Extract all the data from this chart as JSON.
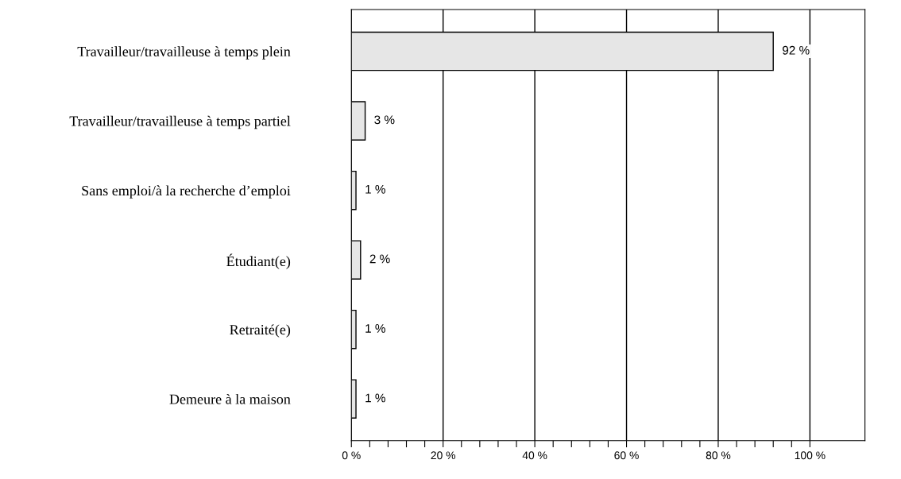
{
  "chart_data": {
    "type": "bar",
    "orientation": "horizontal",
    "categories": [
      "Travailleur/travailleuse à temps plein",
      "Travailleur/travailleuse à temps partiel",
      "Sans emploi/à la recherche d’emploi",
      "Étudiant(e)",
      "Retraité(e)",
      "Demeure à la maison"
    ],
    "values": [
      92,
      3,
      1,
      2,
      1,
      1
    ],
    "value_labels": [
      "92 %",
      "3 %",
      "1 %",
      "2 %",
      "1 %",
      "1 %"
    ],
    "color": "#e6e6e6",
    "xlim": [
      0,
      112
    ],
    "xticks": [
      {
        "value": 0,
        "label": "0 %"
      },
      {
        "value": 4,
        "label": null
      },
      {
        "value": 8,
        "label": null
      },
      {
        "value": 12,
        "label": null
      },
      {
        "value": 16,
        "label": null
      },
      {
        "value": 20,
        "label": "20 %"
      },
      {
        "value": 24,
        "label": null
      },
      {
        "value": 28,
        "label": null
      },
      {
        "value": 32,
        "label": null
      },
      {
        "value": 36,
        "label": null
      },
      {
        "value": 40,
        "label": "40 %"
      },
      {
        "value": 44,
        "label": null
      },
      {
        "value": 48,
        "label": null
      },
      {
        "value": 52,
        "label": null
      },
      {
        "value": 56,
        "label": null
      },
      {
        "value": 60,
        "label": "60 %"
      },
      {
        "value": 64,
        "label": null
      },
      {
        "value": 68,
        "label": null
      },
      {
        "value": 72,
        "label": null
      },
      {
        "value": 76,
        "label": null
      },
      {
        "value": 80,
        "label": "80 %"
      },
      {
        "value": 84,
        "label": null
      },
      {
        "value": 88,
        "label": null
      },
      {
        "value": 92,
        "label": null
      },
      {
        "value": 96,
        "label": null
      },
      {
        "value": 100,
        "label": "100 %"
      }
    ],
    "grid": "x",
    "legend": false
  }
}
